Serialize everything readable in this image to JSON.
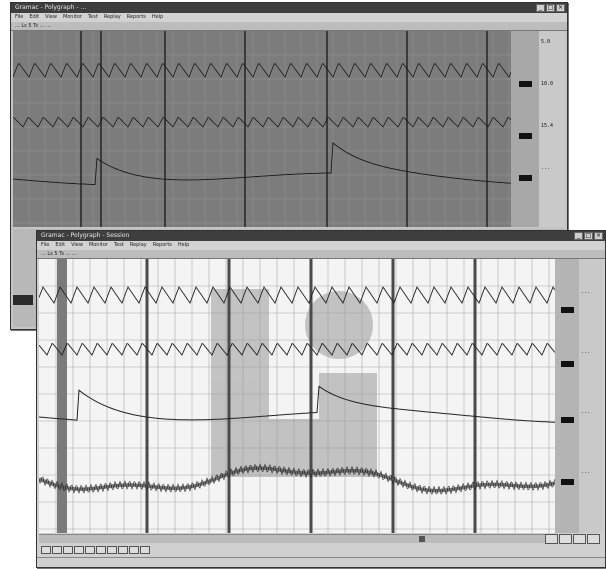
{
  "back_window": {
    "title": "Gramac - Polygraph - ...",
    "menu": [
      "File",
      "Edit",
      "View",
      "Monitor",
      "Test",
      "Replay",
      "Reports",
      "Help"
    ],
    "toolbar_text": "... Ls 5 Ts ... ...",
    "readouts": [
      "5.0",
      "10.0",
      "15.4",
      "...",
      "..."
    ],
    "channel_markers": [
      "",
      "",
      ""
    ],
    "status_text": ""
  },
  "front_window": {
    "title": "Gramac - Polygraph - Session",
    "menu": [
      "File",
      "Edit",
      "View",
      "Monitor",
      "Test",
      "Replay",
      "Reports",
      "Help"
    ],
    "toolbar_text": "... Ls 5 Ts ... ...",
    "readouts": [
      "...",
      "...",
      "...",
      "..."
    ],
    "channel_markers": [
      "",
      "",
      "",
      ""
    ],
    "status_text": "",
    "overlay_logo_colors": {
      "shape": "#9a9a9a"
    }
  },
  "colors": {
    "window_bg": "#c4c4c4",
    "back_plot_bg": "#7c7c7c",
    "front_plot_bg": "#f4f4f4",
    "trace": "#222222",
    "grid": "#9a9a9a",
    "titlebar": "#3e3e3e"
  }
}
